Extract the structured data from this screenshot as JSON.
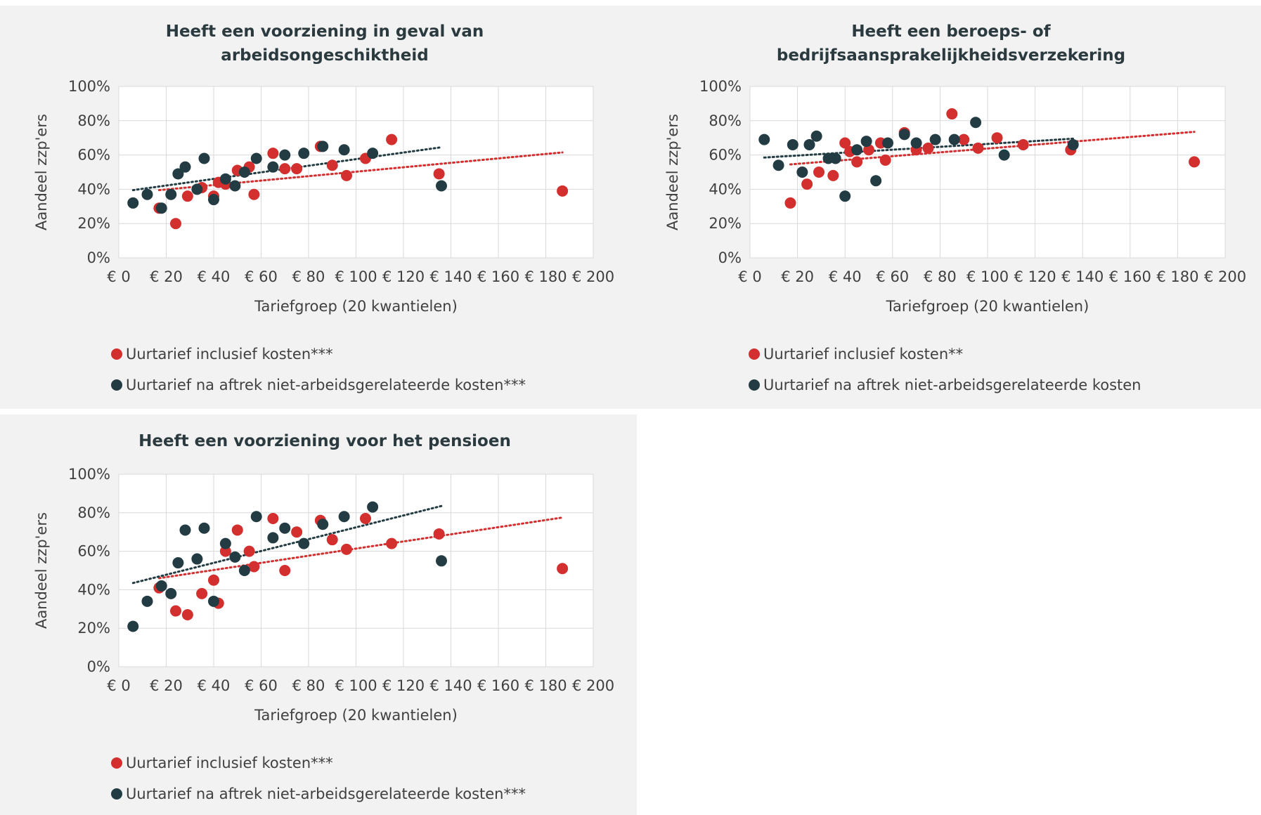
{
  "colors": {
    "red": "#d32f2f",
    "dark": "#233c44",
    "grid": "#d9d9d9",
    "panel": "#f2f2f2"
  },
  "chart_data": [
    {
      "type": "scatter",
      "title": [
        "Heeft een voorziening in geval van",
        "arbeidsongeschiktheid"
      ],
      "xlabel": "Tariefgroep (20 kwantielen)",
      "ylabel": "Aandeel zzp'ers",
      "xlim": [
        0,
        200
      ],
      "ylim": [
        0,
        100
      ],
      "x_ticks": [
        "€ 0",
        "€ 20",
        "€ 40",
        "€ 60",
        "€ 80",
        "€ 100",
        "€ 120",
        "€ 140",
        "€ 160",
        "€ 180",
        "€ 200"
      ],
      "y_ticks": [
        "0%",
        "20%",
        "40%",
        "60%",
        "80%",
        "100%"
      ],
      "grid": true,
      "legend_position": "bottom",
      "series": [
        {
          "name": "Uurtarief inclusief kosten***",
          "color": "red",
          "x": [
            17,
            24,
            29,
            35,
            40,
            42,
            45,
            50,
            55,
            57,
            65,
            70,
            75,
            85,
            90,
            96,
            104,
            115,
            135,
            187
          ],
          "y": [
            29,
            20,
            36,
            41,
            36,
            44,
            43,
            51,
            53,
            37,
            61,
            52,
            52,
            65,
            54,
            48,
            58,
            69,
            49,
            39
          ],
          "trend": [
            [
              17,
              39.5
            ],
            [
              187,
              61.5
            ]
          ]
        },
        {
          "name": "Uurtarief na aftrek niet-arbeidsgerelateerde kosten***",
          "color": "dark",
          "x": [
            6,
            12,
            18,
            22,
            25,
            28,
            33,
            36,
            40,
            45,
            49,
            53,
            58,
            65,
            70,
            78,
            86,
            95,
            107,
            136
          ],
          "y": [
            32,
            37,
            29,
            37,
            49,
            53,
            40,
            58,
            34,
            46,
            42,
            50,
            58,
            53,
            60,
            61,
            65,
            63,
            61,
            42
          ],
          "trend": [
            [
              6,
              39.5
            ],
            [
              136,
              64.5
            ]
          ]
        }
      ]
    },
    {
      "type": "scatter",
      "title": [
        "Heeft een beroeps- of",
        "bedrijfsaansprakelijkheidsverzekering"
      ],
      "xlabel": "Tariefgroep (20 kwantielen)",
      "ylabel": "Aandeel zzp'ers",
      "xlim": [
        0,
        200
      ],
      "ylim": [
        0,
        100
      ],
      "x_ticks": [
        "€ 0",
        "€ 20",
        "€ 40",
        "€ 60",
        "€ 80",
        "€ 100",
        "€ 120",
        "€ 140",
        "€ 160",
        "€ 180",
        "€ 200"
      ],
      "y_ticks": [
        "0%",
        "20%",
        "40%",
        "60%",
        "80%",
        "100%"
      ],
      "grid": true,
      "legend_position": "bottom",
      "series": [
        {
          "name": "Uurtarief inclusief kosten**",
          "color": "red",
          "x": [
            17,
            24,
            29,
            35,
            40,
            42,
            45,
            50,
            55,
            57,
            65,
            70,
            75,
            85,
            90,
            96,
            104,
            115,
            135,
            187
          ],
          "y": [
            32,
            43,
            50,
            48,
            67,
            62,
            56,
            63,
            67,
            57,
            73,
            63,
            64,
            84,
            69,
            64,
            70,
            66,
            63,
            56
          ],
          "trend": [
            [
              17,
              54.5
            ],
            [
              187,
              73.5
            ]
          ]
        },
        {
          "name": "Uurtarief na aftrek niet-arbeidsgerelateerde kosten",
          "color": "dark",
          "x": [
            6,
            12,
            18,
            22,
            25,
            28,
            33,
            36,
            40,
            45,
            49,
            53,
            58,
            65,
            70,
            78,
            86,
            95,
            107,
            136
          ],
          "y": [
            69,
            54,
            66,
            50,
            66,
            71,
            58,
            58,
            36,
            63,
            68,
            45,
            67,
            72,
            67,
            69,
            69,
            79,
            60,
            66
          ],
          "trend": [
            [
              6,
              58.5
            ],
            [
              136,
              69.5
            ]
          ]
        }
      ]
    },
    {
      "type": "scatter",
      "title": [
        "Heeft een voorziening voor het pensioen"
      ],
      "xlabel": "Tariefgroep (20 kwantielen)",
      "ylabel": "Aandeel zzp'ers",
      "xlim": [
        0,
        200
      ],
      "ylim": [
        0,
        100
      ],
      "x_ticks": [
        "€ 0",
        "€ 20",
        "€ 40",
        "€ 60",
        "€ 80",
        "€ 100",
        "€ 120",
        "€ 140",
        "€ 160",
        "€ 180",
        "€ 200"
      ],
      "y_ticks": [
        "0%",
        "20%",
        "40%",
        "60%",
        "80%",
        "100%"
      ],
      "grid": true,
      "legend_position": "bottom",
      "series": [
        {
          "name": "Uurtarief inclusief kosten***",
          "color": "red",
          "x": [
            17,
            24,
            29,
            35,
            40,
            42,
            45,
            50,
            55,
            57,
            65,
            70,
            75,
            85,
            90,
            96,
            104,
            115,
            135,
            187
          ],
          "y": [
            41,
            29,
            27,
            38,
            45,
            33,
            60,
            71,
            60,
            52,
            77,
            50,
            70,
            76,
            66,
            61,
            77,
            64,
            69,
            51
          ],
          "trend": [
            [
              17,
              46
            ],
            [
              187,
              77.5
            ]
          ]
        },
        {
          "name": "Uurtarief na aftrek niet-arbeidsgerelateerde kosten***",
          "color": "dark",
          "x": [
            6,
            12,
            18,
            22,
            25,
            28,
            33,
            36,
            40,
            45,
            49,
            53,
            58,
            65,
            70,
            78,
            86,
            95,
            107,
            136
          ],
          "y": [
            21,
            34,
            42,
            38,
            54,
            71,
            56,
            72,
            34,
            64,
            57,
            50,
            78,
            67,
            72,
            64,
            74,
            78,
            83,
            55
          ],
          "trend": [
            [
              6,
              43.5
            ],
            [
              136,
              83.5
            ]
          ]
        }
      ]
    }
  ]
}
